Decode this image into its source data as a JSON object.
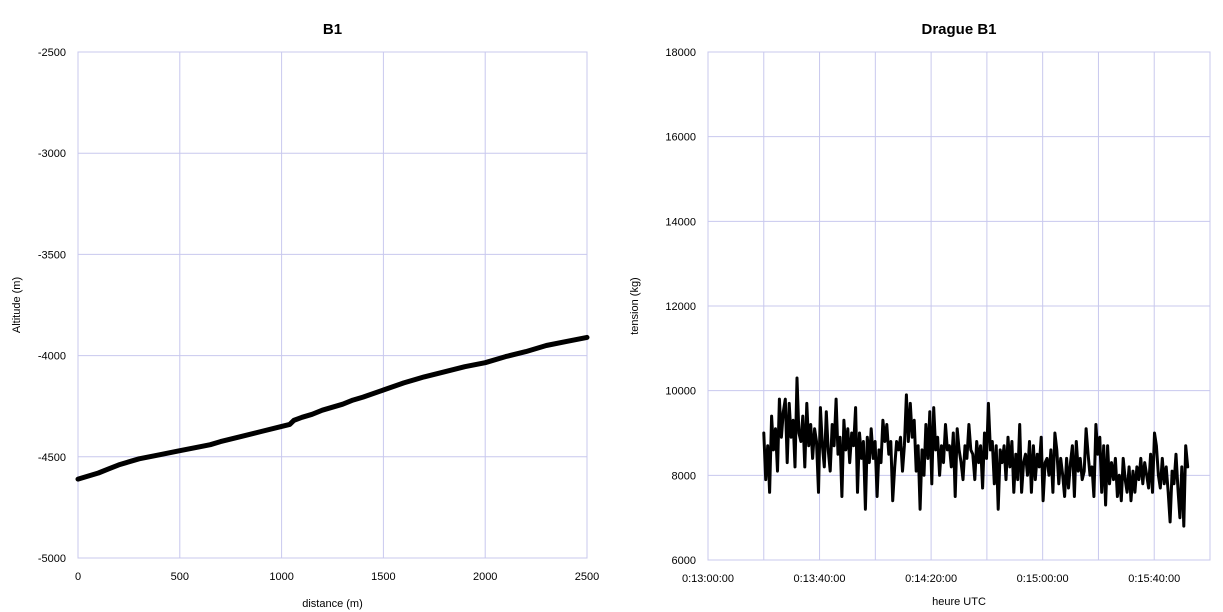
{
  "chart_data": [
    {
      "type": "line",
      "title": "B1",
      "xlabel": "distance (m)",
      "ylabel": "Altitude (m)",
      "xlim": [
        0,
        2500
      ],
      "ylim": [
        -5000,
        -2500
      ],
      "xticks": [
        0,
        500,
        1000,
        1500,
        2000,
        2500
      ],
      "yticks": [
        -5000,
        -4500,
        -4000,
        -3500,
        -3000,
        -2500
      ],
      "xtick_labels": [
        "0",
        "500",
        "1000",
        "1500",
        "2000",
        "2500"
      ],
      "ytick_labels": [
        "-5000",
        "-4500",
        "-4000",
        "-3500",
        "-3000",
        "-2500"
      ],
      "grid": true,
      "line_color": "#000000",
      "grid_color": "#c8c8ee",
      "series": [
        {
          "x": [
            0,
            100,
            150,
            200,
            300,
            400,
            500,
            600,
            650,
            700,
            800,
            900,
            1000,
            1040,
            1060,
            1100,
            1150,
            1200,
            1300,
            1350,
            1400,
            1500,
            1600,
            1700,
            1800,
            1900,
            2000,
            2100,
            2200,
            2300,
            2400,
            2500
          ],
          "y": [
            -4610,
            -4580,
            -4560,
            -4540,
            -4510,
            -4490,
            -4470,
            -4450,
            -4440,
            -4425,
            -4400,
            -4375,
            -4350,
            -4340,
            -4320,
            -4305,
            -4290,
            -4270,
            -4240,
            -4220,
            -4205,
            -4170,
            -4135,
            -4105,
            -4080,
            -4055,
            -4035,
            -4005,
            -3980,
            -3950,
            -3930,
            -3910
          ]
        }
      ]
    },
    {
      "type": "line",
      "title": "Drague B1",
      "xlabel": "heure UTC",
      "ylabel": "tension (kg)",
      "xlim_seconds": [
        780,
        960
      ],
      "xlim": [
        "0:13:00:00",
        "0:16:00:00"
      ],
      "ylim": [
        6000,
        18000
      ],
      "xticks_seconds": [
        780,
        820,
        860,
        900,
        940
      ],
      "xtick_labels": [
        "0:13:00:00",
        "0:13:40:00",
        "0:14:20:00",
        "0:15:00:00",
        "0:15:40:00"
      ],
      "yticks": [
        6000,
        8000,
        10000,
        12000,
        14000,
        16000,
        18000
      ],
      "ytick_labels": [
        "6000",
        "8000",
        "10000",
        "12000",
        "14000",
        "16000",
        "18000"
      ],
      "x_gridlines_seconds": [
        780,
        800,
        820,
        840,
        860,
        880,
        900,
        920,
        940,
        960
      ],
      "grid": true,
      "line_color": "#000000",
      "grid_color": "#c8c8ee",
      "series": [
        {
          "t_start_seconds": 800,
          "t_end_seconds": 952,
          "values": [
            9000,
            7900,
            8700,
            7600,
            9400,
            8600,
            9100,
            8100,
            9800,
            8900,
            9500,
            9800,
            8300,
            9700,
            8900,
            9300,
            8200,
            10300,
            9000,
            8800,
            9400,
            8200,
            9700,
            8700,
            9200,
            8400,
            9100,
            8800,
            7600,
            9600,
            8700,
            8200,
            9500,
            8600,
            8100,
            9200,
            8700,
            9800,
            8500,
            8900,
            7500,
            9300,
            8600,
            9100,
            8300,
            9000,
            8700,
            9600,
            7600,
            9000,
            8400,
            8800,
            7200,
            8900,
            8300,
            9100,
            8400,
            8800,
            7500,
            8600,
            8300,
            9300,
            8800,
            9200,
            8500,
            8800,
            7400,
            8200,
            8800,
            8600,
            8900,
            8100,
            8700,
            9900,
            8800,
            9700,
            8900,
            9300,
            8100,
            8700,
            7200,
            8600,
            8000,
            9200,
            8400,
            9500,
            7800,
            9600,
            8600,
            8900,
            8000,
            8700,
            8300,
            9200,
            8600,
            8700,
            8200,
            9000,
            7500,
            9100,
            8600,
            8300,
            7900,
            8700,
            8400,
            9200,
            8600,
            8500,
            7900,
            8800,
            8300,
            8700,
            7700,
            9000,
            8400,
            9700,
            8600,
            8800,
            7800,
            8700,
            7200,
            8600,
            8300,
            8700,
            7900,
            8900,
            8200,
            8800,
            7600,
            8500,
            7900,
            9200,
            7600,
            8300,
            8500,
            8000,
            8800,
            7600,
            8700,
            7900,
            8500,
            8200,
            8900,
            7400,
            8300,
            8400,
            8000,
            8600,
            7600,
            9000,
            8600,
            7800,
            8400,
            8000,
            7500,
            8400,
            7700,
            8300,
            8700,
            7500,
            8800,
            8100,
            8400,
            7900,
            8100,
            9100,
            8500,
            8000,
            8200,
            7500,
            9200,
            8500,
            8900,
            7600,
            8700,
            7300,
            8700,
            7800,
            8300,
            7900,
            8400,
            7500,
            8000,
            7400,
            8400,
            7900,
            7600,
            8200,
            7400,
            8100,
            7600,
            8200,
            7900,
            8400,
            7800,
            8300,
            8000,
            7700,
            8500,
            7600,
            9000,
            8700,
            8000,
            7700,
            8400,
            7800,
            8200,
            7600,
            6900,
            8100,
            7800,
            8500,
            7700,
            7000,
            8200,
            6800,
            8700,
            8200
          ]
        }
      ]
    }
  ]
}
